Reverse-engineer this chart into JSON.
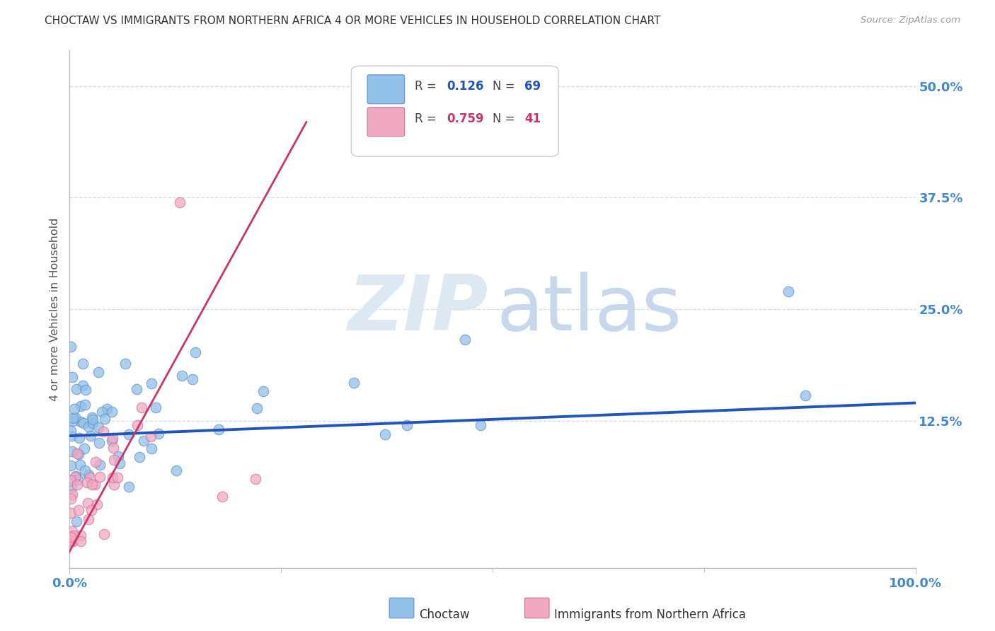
{
  "title": "CHOCTAW VS IMMIGRANTS FROM NORTHERN AFRICA 4 OR MORE VEHICLES IN HOUSEHOLD CORRELATION CHART",
  "source": "Source: ZipAtlas.com",
  "ylabel": "4 or more Vehicles in Household",
  "xlim": [
    0,
    1.0
  ],
  "ylim": [
    -0.04,
    0.54
  ],
  "yticks": [
    0.0,
    0.125,
    0.25,
    0.375,
    0.5
  ],
  "yticklabels": [
    "",
    "12.5%",
    "25.0%",
    "37.5%",
    "50.0%"
  ],
  "R_blue": 0.126,
  "N_blue": 69,
  "R_pink": 0.759,
  "N_pink": 41,
  "blue_scatter_color": "#92C0E8",
  "pink_scatter_color": "#F0A8C0",
  "blue_edge_color": "#6090C8",
  "pink_edge_color": "#D070A0",
  "trend_blue_color": "#2255BB",
  "trend_pink_color": "#CC3366",
  "legend_label_blue": "Choctaw",
  "legend_label_pink": "Immigrants from Northern Africa",
  "background_color": "#ffffff",
  "grid_color": "#CCDDEE",
  "axis_color": "#BBBBBB",
  "tick_label_color": "#4488CC",
  "title_color": "#333333",
  "source_color": "#999999",
  "ylabel_color": "#555555",
  "watermark_zip_color": "#DDE8F2",
  "watermark_atlas_color": "#C8D8EC"
}
